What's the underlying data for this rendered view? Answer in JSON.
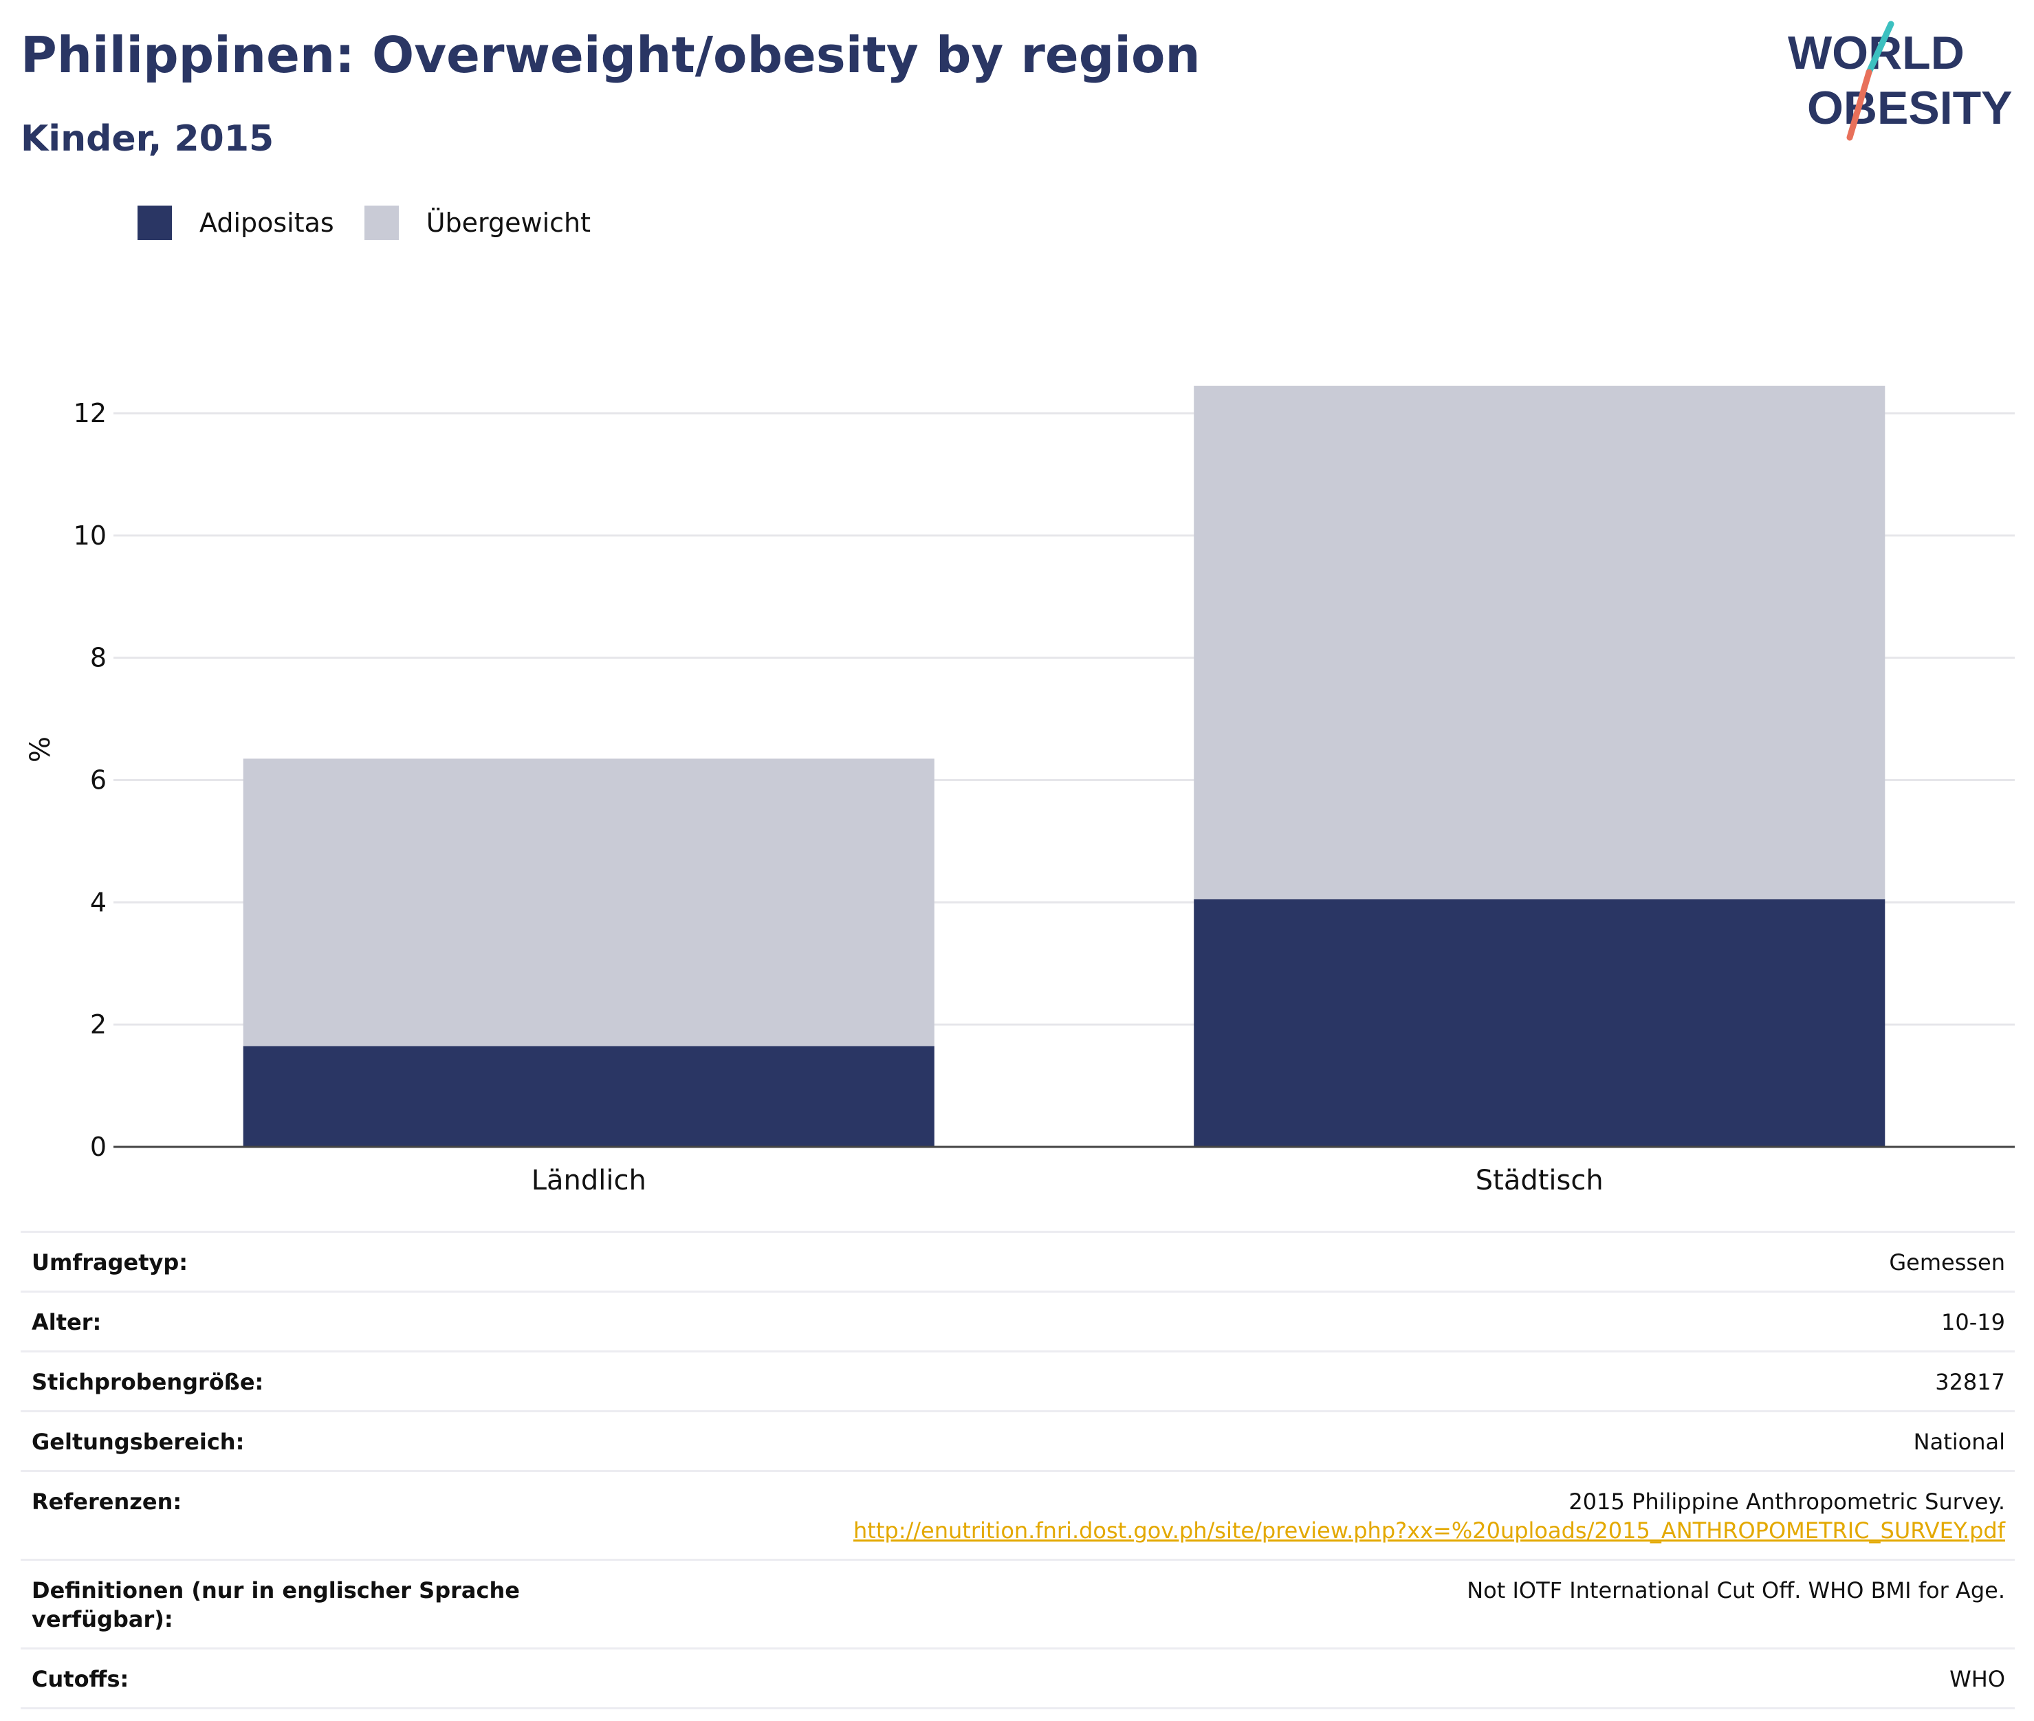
{
  "header": {
    "title": "Philippinen: Overweight/obesity by region",
    "subtitle": "Kinder, 2015"
  },
  "logo": {
    "line1": "WORLD",
    "line2": "OBESITY",
    "accent_colors": [
      "#3cc0c0",
      "#e8705a"
    ]
  },
  "legend": [
    {
      "label": "Adipositas",
      "color": "#2a3664"
    },
    {
      "label": "Übergewicht",
      "color": "#c9cbd6"
    }
  ],
  "chart_data": {
    "type": "bar",
    "stacked": true,
    "categories": [
      "Ländlich",
      "Städtisch"
    ],
    "series": [
      {
        "name": "Adipositas",
        "values": [
          1.65,
          4.05
        ],
        "color": "#2a3664"
      },
      {
        "name": "Übergewicht",
        "values": [
          4.7,
          8.4
        ],
        "color": "#c9cbd6"
      }
    ],
    "ylabel": "%",
    "ylim": [
      0,
      13
    ],
    "yticks": [
      0,
      2,
      4,
      6,
      8,
      10,
      12
    ],
    "grid": true,
    "legend_position": "top-left"
  },
  "table": [
    {
      "key": "Umfragetyp:",
      "value": "Gemessen"
    },
    {
      "key": "Alter:",
      "value": "10-19"
    },
    {
      "key": "Stichprobengröße:",
      "value": "32817"
    },
    {
      "key": "Geltungsbereich:",
      "value": "National"
    },
    {
      "key": "Referenzen:",
      "value": "2015 Philippine Anthropometric Survey.",
      "link": "http://enutrition.fnri.dost.gov.ph/site/preview.php?xx=%20uploads/2015_ANTHROPOMETRIC_SURVEY.pdf"
    },
    {
      "key": "Definitionen (nur in englischer Sprache verfügbar):",
      "value": "Not IOTF International Cut Off. WHO BMI for Age."
    },
    {
      "key": "Cutoffs:",
      "value": "WHO"
    }
  ]
}
